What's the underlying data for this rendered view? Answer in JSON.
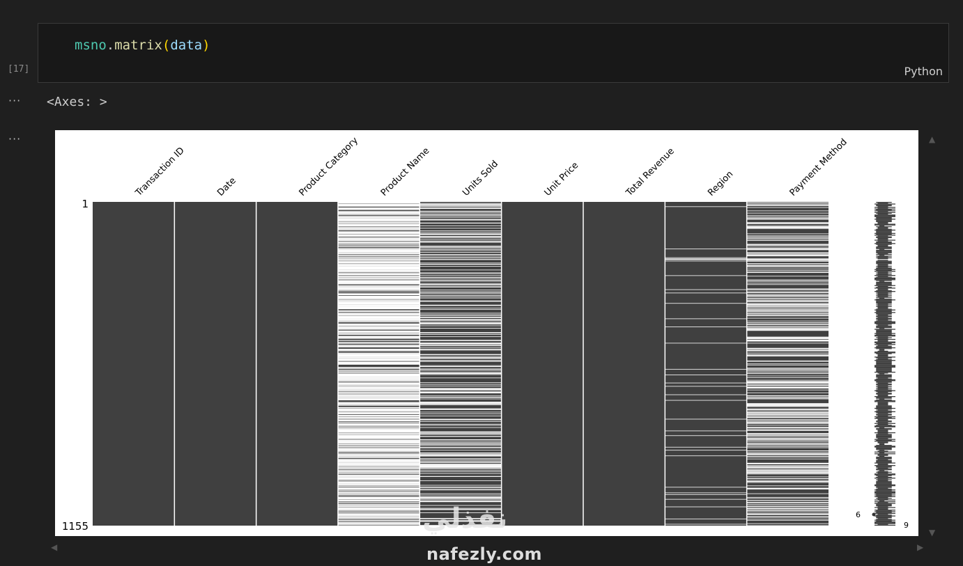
{
  "cell": {
    "exec_count": "[17]",
    "code": {
      "obj": "msno",
      "dot": ".",
      "fn": "matrix",
      "open": "(",
      "arg": "data",
      "close": ")"
    },
    "language": "Python"
  },
  "output": {
    "dots1": "···",
    "text": "<Axes: >",
    "dots2": "···"
  },
  "watermark": {
    "arabic": "نفذلي",
    "latin": "nafezly.com"
  },
  "chart_data": {
    "type": "heatmap",
    "columns": [
      "Transaction ID",
      "Date",
      "Product Category",
      "Product Name",
      "Units Sold",
      "Unit Price",
      "Total Revenue",
      "Region",
      "Payment Method"
    ],
    "row_labels": {
      "first": "1",
      "last": "1155"
    },
    "n_rows": 1155,
    "approx_missing_fraction": [
      0,
      0,
      0,
      0.55,
      0.2,
      0,
      0,
      0.02,
      0.25
    ],
    "sparkline_labels": {
      "min": "6",
      "max": "9"
    },
    "colors": {
      "present": "#404040",
      "missing": "#ffffff"
    }
  }
}
